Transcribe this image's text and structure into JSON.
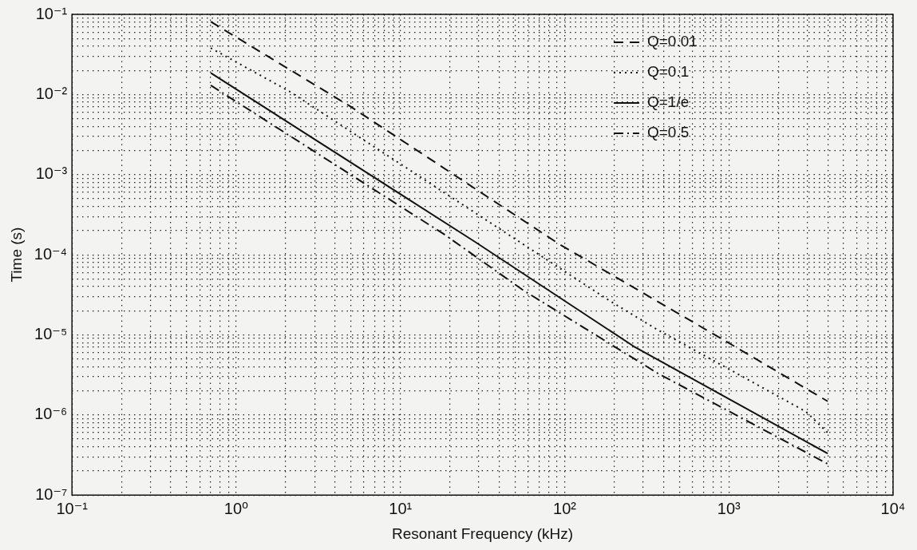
{
  "chart_data": {
    "type": "line",
    "xlabel": "Resonant Frequency (kHz)",
    "ylabel": "Time (s)",
    "log": "xy",
    "grid": true,
    "legend": "top right",
    "marker": "none",
    "xlim": [
      0.1,
      10000
    ],
    "xticks": [
      {
        "value": 0.1,
        "label": "10⁻¹"
      },
      {
        "value": 0.2,
        "label": null
      },
      {
        "value": 0.3,
        "label": null
      },
      {
        "value": 0.4,
        "label": null
      },
      {
        "value": 0.5,
        "label": null
      },
      {
        "value": 0.6,
        "label": null
      },
      {
        "value": 0.7,
        "label": null
      },
      {
        "value": 0.8,
        "label": null
      },
      {
        "value": 0.9,
        "label": null
      },
      {
        "value": 1,
        "label": "10⁰"
      },
      {
        "value": 2,
        "label": null
      },
      {
        "value": 3,
        "label": null
      },
      {
        "value": 4,
        "label": null
      },
      {
        "value": 5,
        "label": null
      },
      {
        "value": 6,
        "label": null
      },
      {
        "value": 7,
        "label": null
      },
      {
        "value": 8,
        "label": null
      },
      {
        "value": 9,
        "label": null
      },
      {
        "value": 10,
        "label": "10¹"
      },
      {
        "value": 20,
        "label": null
      },
      {
        "value": 30,
        "label": null
      },
      {
        "value": 40,
        "label": null
      },
      {
        "value": 50,
        "label": null
      },
      {
        "value": 60,
        "label": null
      },
      {
        "value": 70,
        "label": null
      },
      {
        "value": 80,
        "label": null
      },
      {
        "value": 90,
        "label": null
      },
      {
        "value": 100,
        "label": "10²"
      },
      {
        "value": 200,
        "label": null
      },
      {
        "value": 300,
        "label": null
      },
      {
        "value": 400,
        "label": null
      },
      {
        "value": 500,
        "label": null
      },
      {
        "value": 600,
        "label": null
      },
      {
        "value": 700,
        "label": null
      },
      {
        "value": 800,
        "label": null
      },
      {
        "value": 900,
        "label": null
      },
      {
        "value": 1000,
        "label": "10³"
      },
      {
        "value": 2000,
        "label": null
      },
      {
        "value": 3000,
        "label": null
      },
      {
        "value": 4000,
        "label": null
      },
      {
        "value": 5000,
        "label": null
      },
      {
        "value": 6000,
        "label": null
      },
      {
        "value": 7000,
        "label": null
      },
      {
        "value": 8000,
        "label": null
      },
      {
        "value": 9000,
        "label": null
      },
      {
        "value": 10000,
        "label": "10⁴"
      }
    ],
    "ylim": [
      1e-07,
      0.1
    ],
    "yticks": [
      {
        "value": 1e-07,
        "label": "10⁻⁷"
      },
      {
        "value": 2e-07,
        "label": null
      },
      {
        "value": 3e-07,
        "label": null
      },
      {
        "value": 4e-07,
        "label": null
      },
      {
        "value": 5e-07,
        "label": null
      },
      {
        "value": 6e-07,
        "label": null
      },
      {
        "value": 7e-07,
        "label": null
      },
      {
        "value": 8e-07,
        "label": null
      },
      {
        "value": 9e-07,
        "label": null
      },
      {
        "value": 1e-06,
        "label": "10⁻⁶"
      },
      {
        "value": 2e-06,
        "label": null
      },
      {
        "value": 3e-06,
        "label": null
      },
      {
        "value": 4e-06,
        "label": null
      },
      {
        "value": 5e-06,
        "label": null
      },
      {
        "value": 6e-06,
        "label": null
      },
      {
        "value": 7e-06,
        "label": null
      },
      {
        "value": 8e-06,
        "label": null
      },
      {
        "value": 9e-06,
        "label": null
      },
      {
        "value": 1e-05,
        "label": "10⁻⁵"
      },
      {
        "value": 2e-05,
        "label": null
      },
      {
        "value": 3e-05,
        "label": null
      },
      {
        "value": 4e-05,
        "label": null
      },
      {
        "value": 5e-05,
        "label": null
      },
      {
        "value": 6e-05,
        "label": null
      },
      {
        "value": 7e-05,
        "label": null
      },
      {
        "value": 8e-05,
        "label": null
      },
      {
        "value": 9e-05,
        "label": null
      },
      {
        "value": 0.0001,
        "label": "10⁻⁴"
      },
      {
        "value": 0.0002,
        "label": null
      },
      {
        "value": 0.0003,
        "label": null
      },
      {
        "value": 0.0004,
        "label": null
      },
      {
        "value": 0.0005,
        "label": null
      },
      {
        "value": 0.0006,
        "label": null
      },
      {
        "value": 0.0007,
        "label": null
      },
      {
        "value": 0.0008,
        "label": null
      },
      {
        "value": 0.0009,
        "label": null
      },
      {
        "value": 0.001,
        "label": "10⁻³"
      },
      {
        "value": 0.002,
        "label": null
      },
      {
        "value": 0.003,
        "label": null
      },
      {
        "value": 0.004,
        "label": null
      },
      {
        "value": 0.005,
        "label": null
      },
      {
        "value": 0.006,
        "label": null
      },
      {
        "value": 0.007,
        "label": null
      },
      {
        "value": 0.008,
        "label": null
      },
      {
        "value": 0.009,
        "label": null
      },
      {
        "value": 0.01,
        "label": "10⁻²"
      },
      {
        "value": 0.02,
        "label": null
      },
      {
        "value": 0.03,
        "label": null
      },
      {
        "value": 0.04,
        "label": null
      },
      {
        "value": 0.05,
        "label": null
      },
      {
        "value": 0.06,
        "label": null
      },
      {
        "value": 0.07,
        "label": null
      },
      {
        "value": 0.08,
        "label": null
      },
      {
        "value": 0.09,
        "label": null
      },
      {
        "value": 0.1,
        "label": "10⁻¹"
      }
    ],
    "series": [
      {
        "name": "Q=0.01",
        "color": "#111111",
        "line_style": "dashed",
        "x": [
          0.7,
          4.9,
          93,
          890,
          4000
        ],
        "values": [
          0.081,
          0.0072,
          0.000135,
          9.1e-06,
          1.48e-06
        ]
      },
      {
        "name": "Q=0.1",
        "color": "#111111",
        "line_style": "dotted",
        "x": [
          0.7,
          2.1,
          186,
          370,
          2950,
          4000
        ],
        "values": [
          0.038,
          0.011,
          2.7e-05,
          1.15e-05,
          1.1e-06,
          6e-07
        ]
      },
      {
        "name": "Q=1/e",
        "color": "#111111",
        "line_style": "solid",
        "x": [
          0.7,
          28,
          263,
          4000
        ],
        "values": [
          0.0186,
          0.000148,
          7.2e-06,
          3.3e-07
        ]
      },
      {
        "name": "Q=0.5",
        "color": "#111111",
        "line_style": "dashdot",
        "x": [
          0.7,
          18.6,
          56,
          370,
          4000
        ],
        "values": [
          0.013,
          0.000178,
          3.6e-05,
          3.3e-06,
          2.45e-07
        ]
      }
    ]
  }
}
